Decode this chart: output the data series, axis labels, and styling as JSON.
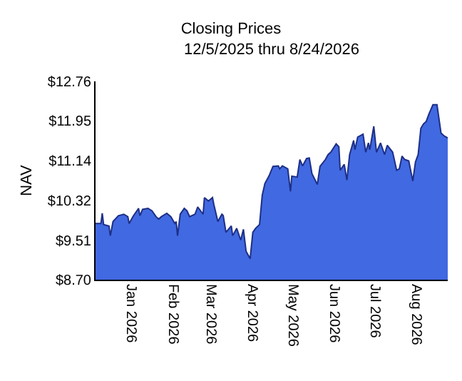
{
  "chart_data": {
    "type": "area",
    "title": "Closing Prices",
    "subtitle": "12/5/2025 thru 8/24/2026",
    "ylabel": "NAV",
    "x": [
      "2025-12-05",
      "2025-12-09",
      "2025-12-10",
      "2025-12-11",
      "2025-12-15",
      "2025-12-16",
      "2025-12-18",
      "2025-12-22",
      "2025-12-26",
      "2025-12-29",
      "2025-12-30",
      "2026-01-02",
      "2026-01-06",
      "2026-01-07",
      "2026-01-09",
      "2026-01-13",
      "2026-01-16",
      "2026-01-19",
      "2026-01-21",
      "2026-01-23",
      "2026-01-27",
      "2026-01-30",
      "2026-02-02",
      "2026-02-03",
      "2026-02-04",
      "2026-02-06",
      "2026-02-09",
      "2026-02-11",
      "2026-02-13",
      "2026-02-17",
      "2026-02-19",
      "2026-02-23",
      "2026-02-24",
      "2026-02-27",
      "2026-03-02",
      "2026-03-03",
      "2026-03-06",
      "2026-03-09",
      "2026-03-10",
      "2026-03-12",
      "2026-03-16",
      "2026-03-17",
      "2026-03-20",
      "2026-03-23",
      "2026-03-25",
      "2026-03-27",
      "2026-03-30",
      "2026-04-01",
      "2026-04-03",
      "2026-04-06",
      "2026-04-08",
      "2026-04-10",
      "2026-04-13",
      "2026-04-16",
      "2026-04-20",
      "2026-04-21",
      "2026-04-23",
      "2026-04-27",
      "2026-04-29",
      "2026-04-30",
      "2026-05-04",
      "2026-05-06",
      "2026-05-08",
      "2026-05-11",
      "2026-05-13",
      "2026-05-15",
      "2026-05-19",
      "2026-05-21",
      "2026-05-25",
      "2026-05-27",
      "2026-05-29",
      "2026-06-02",
      "2026-06-04",
      "2026-06-05",
      "2026-06-08",
      "2026-06-10",
      "2026-06-12",
      "2026-06-15",
      "2026-06-16",
      "2026-06-18",
      "2026-06-22",
      "2026-06-24",
      "2026-06-26",
      "2026-06-27",
      "2026-06-30",
      "2026-07-02",
      "2026-07-05",
      "2026-07-08",
      "2026-07-10",
      "2026-07-14",
      "2026-07-17",
      "2026-07-19",
      "2026-07-21",
      "2026-07-23",
      "2026-07-26",
      "2026-07-29",
      "2026-07-31",
      "2026-08-02",
      "2026-08-04",
      "2026-08-06",
      "2026-08-08",
      "2026-08-10",
      "2026-08-13",
      "2026-08-16",
      "2026-08-19",
      "2026-08-21",
      "2026-08-24"
    ],
    "series": [
      {
        "color": "#4169e1",
        "values": [
          9.85,
          9.85,
          10.06,
          9.83,
          9.8,
          9.6,
          9.89,
          10.01,
          10.04,
          9.99,
          9.85,
          10.0,
          10.16,
          10.01,
          10.14,
          10.16,
          10.11,
          9.99,
          9.94,
          9.99,
          10.06,
          9.99,
          9.85,
          9.89,
          9.6,
          10.04,
          10.16,
          10.11,
          9.99,
          10.04,
          10.19,
          10.04,
          10.38,
          10.31,
          10.38,
          10.24,
          9.89,
          10.04,
          10.01,
          9.67,
          9.8,
          9.6,
          9.75,
          9.51,
          9.73,
          9.28,
          9.13,
          9.67,
          9.75,
          9.83,
          10.43,
          10.67,
          10.82,
          11.02,
          11.03,
          10.97,
          11.03,
          10.97,
          10.51,
          10.82,
          10.8,
          11.16,
          11.03,
          11.18,
          11.19,
          10.87,
          10.65,
          11.02,
          11.16,
          11.26,
          11.31,
          11.48,
          11.42,
          10.94,
          11.06,
          10.74,
          11.26,
          11.55,
          11.36,
          11.62,
          11.68,
          11.31,
          11.5,
          11.36,
          11.84,
          11.31,
          11.5,
          11.26,
          11.45,
          11.31,
          10.94,
          10.97,
          11.23,
          11.16,
          11.13,
          10.72,
          11.11,
          11.26,
          11.8,
          11.89,
          11.94,
          12.09,
          12.28,
          12.28,
          11.7,
          11.65,
          11.6
        ]
      }
    ],
    "xlim": [
      "2025-12-05",
      "2026-08-24"
    ],
    "xticks": [
      {
        "value": "2026-01-01",
        "label": "Jan 2026"
      },
      {
        "value": "2026-02-01",
        "label": "Feb 2026"
      },
      {
        "value": "2026-03-01",
        "label": "Mar 2026"
      },
      {
        "value": "2026-04-01",
        "label": "Apr 2026"
      },
      {
        "value": "2026-05-01",
        "label": "May 2026"
      },
      {
        "value": "2026-06-01",
        "label": "Jun 2026"
      },
      {
        "value": "2026-07-01",
        "label": "Jul 2026"
      },
      {
        "value": "2026-08-01",
        "label": "Aug 2026"
      }
    ],
    "ylim": [
      8.7,
      12.76
    ],
    "yticks": [
      {
        "value": 8.7,
        "label": "$8.70"
      },
      {
        "value": 9.51,
        "label": "$9.51"
      },
      {
        "value": 10.32,
        "label": "$10.32"
      },
      {
        "value": 11.14,
        "label": "$11.14"
      },
      {
        "value": 11.95,
        "label": "$11.95"
      },
      {
        "value": 12.76,
        "label": "$12.76"
      }
    ],
    "grid": false,
    "legend": false
  }
}
